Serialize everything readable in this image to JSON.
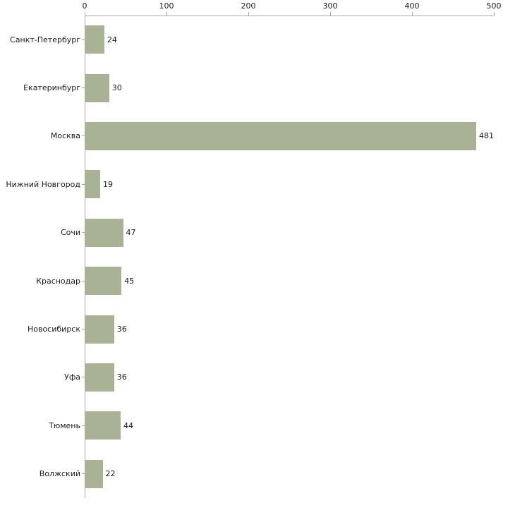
{
  "chart_data": {
    "type": "bar",
    "orientation": "horizontal",
    "title": "",
    "xlabel": "",
    "ylabel": "",
    "categories": [
      "Санкт-Петербург",
      "Екатеринбург",
      "Москва",
      "Нижний Новгород",
      "Сочи",
      "Краснодар",
      "Новосибирск",
      "Уфа",
      "Тюмень",
      "Волжский"
    ],
    "values": [
      24,
      30,
      481,
      19,
      47,
      45,
      36,
      36,
      44,
      22
    ],
    "value_labels": [
      "24",
      "30",
      "481",
      "19",
      "47",
      "45",
      "36",
      "36",
      "44",
      "22"
    ],
    "xlim": [
      0,
      500
    ],
    "xticks": [
      0,
      100,
      200,
      300,
      400,
      500
    ],
    "grid": false,
    "legend": false,
    "bar_color": "#a9b294",
    "axis_color": "#a6a6a6",
    "background_color": "#ffffff"
  }
}
